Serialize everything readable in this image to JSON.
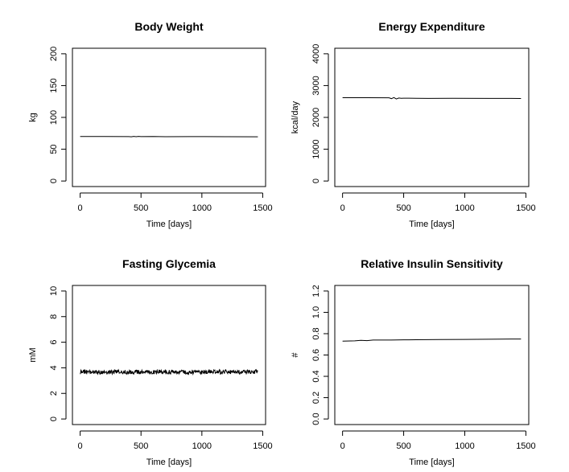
{
  "chart_data": [
    {
      "type": "line",
      "title": "Body Weight",
      "xlabel": "Time [days]",
      "ylabel": "kg",
      "xlim": [
        0,
        1460
      ],
      "ylim": [
        0,
        200
      ],
      "xticks": [
        0,
        500,
        1000,
        1500
      ],
      "xtick_labels": [
        "0",
        "500",
        "1000",
        "1500"
      ],
      "yticks": [
        0,
        50,
        100,
        150,
        200
      ],
      "ytick_labels": [
        "0",
        "50",
        "100",
        "150",
        "200"
      ],
      "series": [
        {
          "x": [
            0,
            200,
            400,
            420,
            440,
            460,
            480,
            500,
            600,
            700,
            900,
            1200,
            1460
          ],
          "y": [
            70,
            70,
            69.8,
            69.5,
            70.2,
            69.6,
            70.1,
            69.8,
            70,
            69.7,
            69.9,
            69.7,
            69.5
          ]
        }
      ]
    },
    {
      "type": "line",
      "title": "Energy Expenditure",
      "xlabel": "Time [days]",
      "ylabel": "kcal/day",
      "xlim": [
        0,
        1460
      ],
      "ylim": [
        0,
        4000
      ],
      "xticks": [
        0,
        500,
        1000,
        1500
      ],
      "xtick_labels": [
        "0",
        "500",
        "1000",
        "1500"
      ],
      "yticks": [
        0,
        1000,
        2000,
        3000,
        4000
      ],
      "ytick_labels": [
        "0",
        "1000",
        "2000",
        "3000",
        "4000"
      ],
      "series": [
        {
          "x": [
            0,
            200,
            380,
            400,
            420,
            440,
            460,
            480,
            500,
            600,
            700,
            900,
            1200,
            1460
          ],
          "y": [
            2620,
            2620,
            2615,
            2590,
            2625,
            2580,
            2610,
            2600,
            2605,
            2600,
            2598,
            2600,
            2597,
            2595
          ]
        }
      ]
    },
    {
      "type": "line",
      "title": "Fasting Glycemia",
      "xlabel": "Time [days]",
      "ylabel": "mM",
      "xlim": [
        0,
        1460
      ],
      "ylim": [
        0,
        10
      ],
      "xticks": [
        0,
        500,
        1000,
        1500
      ],
      "xtick_labels": [
        "0",
        "500",
        "1000",
        "1500"
      ],
      "yticks": [
        0,
        2,
        4,
        6,
        8,
        10
      ],
      "ytick_labels": [
        "0",
        "2",
        "4",
        "6",
        "8",
        "10"
      ],
      "noise": {
        "center": 3.67,
        "amplitude": 0.17,
        "step_days": 3
      },
      "series": [
        {
          "x": [
            0,
            1460
          ],
          "y": [
            3.67,
            3.67
          ]
        }
      ]
    },
    {
      "type": "line",
      "title": "Relative Insulin Sensitivity",
      "xlabel": "Time [days]",
      "ylabel": "#",
      "xlim": [
        0,
        1460
      ],
      "ylim": [
        0,
        1.2
      ],
      "xticks": [
        0,
        500,
        1000,
        1500
      ],
      "xtick_labels": [
        "0",
        "500",
        "1000",
        "1500"
      ],
      "yticks": [
        0,
        0.2,
        0.4,
        0.6,
        0.8,
        1.0,
        1.2
      ],
      "ytick_labels": [
        "0.0",
        "0.2",
        "0.4",
        "0.6",
        "0.8",
        "1.0",
        "1.2"
      ],
      "series": [
        {
          "x": [
            0,
            100,
            150,
            200,
            250,
            400,
            500,
            600,
            700,
            800,
            1000,
            1200,
            1300,
            1460
          ],
          "y": [
            0.73,
            0.733,
            0.738,
            0.735,
            0.74,
            0.74,
            0.742,
            0.743,
            0.744,
            0.745,
            0.746,
            0.748,
            0.749,
            0.75
          ]
        }
      ]
    }
  ]
}
